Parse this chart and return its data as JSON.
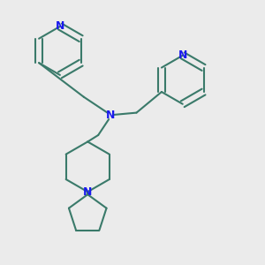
{
  "bg_color": "#ebebeb",
  "bond_color": "#3a7a6a",
  "N_color": "#1a1aee",
  "line_width": 1.5,
  "font_size": 9,
  "fig_size": [
    3.0,
    3.0
  ],
  "dpi": 100,
  "xlim": [
    0.0,
    1.0
  ],
  "ylim": [
    0.0,
    1.0
  ]
}
